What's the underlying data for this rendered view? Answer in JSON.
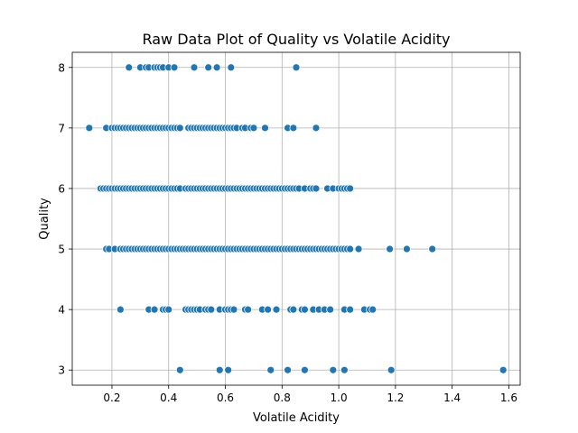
{
  "chart_data": {
    "type": "scatter",
    "title": "Raw Data Plot of Quality vs Volatile Acidity",
    "xlabel": "Volatile Acidity",
    "ylabel": "Quality",
    "xlim": [
      0.06,
      1.64
    ],
    "ylim": [
      2.75,
      8.25
    ],
    "xticks": [
      0.2,
      0.4,
      0.6,
      0.8,
      1.0,
      1.2,
      1.4,
      1.6
    ],
    "xtick_labels": [
      "0.2",
      "0.4",
      "0.6",
      "0.8",
      "1.0",
      "1.2",
      "1.4",
      "1.6"
    ],
    "yticks": [
      3,
      4,
      5,
      6,
      7,
      8
    ],
    "ytick_labels": [
      "3",
      "4",
      "5",
      "6",
      "7",
      "8"
    ],
    "grid": true,
    "color": "#1f77b4",
    "series": [
      {
        "quality": 8,
        "x": [
          0.26,
          0.3,
          0.32,
          0.33,
          0.35,
          0.36,
          0.37,
          0.38,
          0.4,
          0.42,
          0.49,
          0.54,
          0.57,
          0.62,
          0.85
        ]
      },
      {
        "quality": 7,
        "x": [
          0.12,
          0.18,
          0.2,
          0.21,
          0.22,
          0.23,
          0.24,
          0.25,
          0.26,
          0.27,
          0.28,
          0.29,
          0.3,
          0.31,
          0.32,
          0.33,
          0.34,
          0.35,
          0.36,
          0.37,
          0.38,
          0.39,
          0.4,
          0.41,
          0.42,
          0.43,
          0.44,
          0.47,
          0.48,
          0.49,
          0.5,
          0.51,
          0.52,
          0.53,
          0.54,
          0.55,
          0.56,
          0.57,
          0.58,
          0.59,
          0.6,
          0.61,
          0.62,
          0.63,
          0.64,
          0.66,
          0.67,
          0.69,
          0.7,
          0.74,
          0.82,
          0.84,
          0.92
        ]
      },
      {
        "quality": 6,
        "x": [
          0.16,
          0.17,
          0.18,
          0.19,
          0.2,
          0.21,
          0.22,
          0.23,
          0.24,
          0.25,
          0.26,
          0.27,
          0.28,
          0.29,
          0.3,
          0.31,
          0.32,
          0.33,
          0.34,
          0.35,
          0.36,
          0.37,
          0.38,
          0.39,
          0.4,
          0.41,
          0.42,
          0.43,
          0.44,
          0.46,
          0.47,
          0.48,
          0.49,
          0.5,
          0.51,
          0.52,
          0.53,
          0.54,
          0.55,
          0.56,
          0.57,
          0.58,
          0.59,
          0.6,
          0.61,
          0.62,
          0.63,
          0.64,
          0.65,
          0.66,
          0.67,
          0.68,
          0.69,
          0.7,
          0.71,
          0.72,
          0.73,
          0.74,
          0.75,
          0.76,
          0.77,
          0.78,
          0.79,
          0.8,
          0.81,
          0.82,
          0.83,
          0.84,
          0.85,
          0.86,
          0.88,
          0.9,
          0.91,
          0.92,
          0.96,
          0.98,
          1.0,
          1.01,
          1.02,
          1.03,
          1.04
        ]
      },
      {
        "quality": 5,
        "x": [
          0.18,
          0.19,
          0.21,
          0.23,
          0.24,
          0.25,
          0.26,
          0.27,
          0.28,
          0.29,
          0.3,
          0.31,
          0.32,
          0.33,
          0.34,
          0.35,
          0.36,
          0.37,
          0.38,
          0.39,
          0.4,
          0.41,
          0.42,
          0.43,
          0.44,
          0.45,
          0.46,
          0.47,
          0.48,
          0.49,
          0.5,
          0.51,
          0.52,
          0.53,
          0.54,
          0.55,
          0.56,
          0.57,
          0.58,
          0.59,
          0.6,
          0.61,
          0.62,
          0.63,
          0.64,
          0.65,
          0.66,
          0.67,
          0.68,
          0.69,
          0.7,
          0.71,
          0.72,
          0.73,
          0.74,
          0.75,
          0.76,
          0.77,
          0.78,
          0.79,
          0.8,
          0.81,
          0.82,
          0.83,
          0.84,
          0.85,
          0.86,
          0.87,
          0.88,
          0.89,
          0.9,
          0.91,
          0.92,
          0.93,
          0.94,
          0.95,
          0.96,
          0.97,
          0.98,
          0.99,
          1.0,
          1.01,
          1.02,
          1.03,
          1.04,
          1.07,
          1.18,
          1.24,
          1.33
        ]
      },
      {
        "quality": 4,
        "x": [
          0.23,
          0.33,
          0.35,
          0.38,
          0.39,
          0.4,
          0.46,
          0.47,
          0.48,
          0.49,
          0.5,
          0.51,
          0.53,
          0.54,
          0.55,
          0.58,
          0.6,
          0.61,
          0.62,
          0.63,
          0.67,
          0.68,
          0.73,
          0.75,
          0.78,
          0.83,
          0.84,
          0.87,
          0.88,
          0.91,
          0.93,
          0.95,
          0.97,
          1.02,
          1.04,
          1.09,
          1.11,
          1.12
        ]
      },
      {
        "quality": 3,
        "x": [
          0.44,
          0.58,
          0.61,
          0.76,
          0.82,
          0.88,
          0.98,
          1.02,
          1.185,
          1.58
        ]
      }
    ]
  }
}
